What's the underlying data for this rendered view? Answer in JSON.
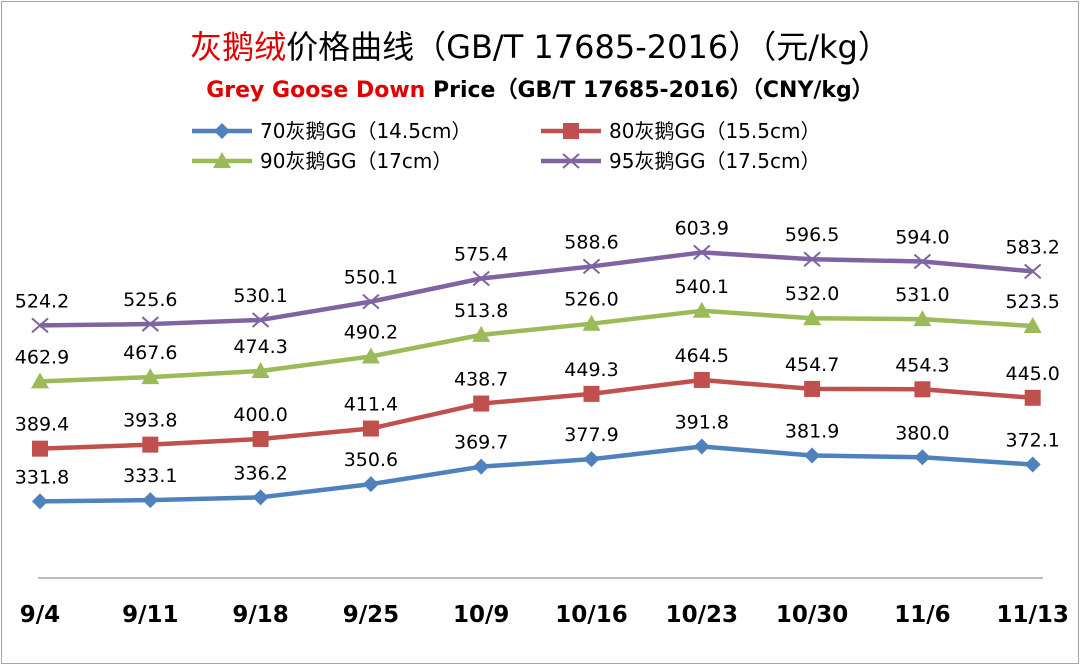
{
  "chart_data": {
    "type": "line",
    "title": {
      "cn_red": "灰鹅绒",
      "cn_rest": "价格曲线（GB/T 17685-2016）（元/kg）",
      "en_red": "Grey Goose Down",
      "en_rest": " Price（GB/T 17685-2016）（CNY/kg）"
    },
    "categories": [
      "9/4",
      "9/11",
      "9/18",
      "9/25",
      "10/9",
      "10/16",
      "10/23",
      "10/30",
      "11/6",
      "11/13"
    ],
    "series": [
      {
        "name": "70灰鹅GG（14.5cm）",
        "color": "#4f81bd",
        "marker": "diamond",
        "values": [
          331.8,
          333.1,
          336.2,
          350.6,
          369.7,
          377.9,
          391.8,
          381.9,
          380.0,
          372.1
        ],
        "labels": [
          "331.8",
          "333.1",
          "336.2",
          "350.6",
          "369.7",
          "377.9",
          "391.8",
          "381.9",
          "380.0",
          "372.1"
        ]
      },
      {
        "name": "80灰鹅GG（15.5cm）",
        "color": "#c0504d",
        "marker": "square",
        "values": [
          389.4,
          393.8,
          400.0,
          411.4,
          438.7,
          449.3,
          464.5,
          454.7,
          454.3,
          445.0
        ],
        "labels": [
          "389.4",
          "393.8",
          "400.0",
          "411.4",
          "438.7",
          "449.3",
          "464.5",
          "454.7",
          "454.3",
          "445.0"
        ]
      },
      {
        "name": "90灰鹅GG（17cm）",
        "color": "#9bbb59",
        "marker": "triangle",
        "values": [
          462.9,
          467.6,
          474.3,
          490.2,
          513.8,
          526.0,
          540.1,
          532.0,
          531.0,
          523.5
        ],
        "labels": [
          "462.9",
          "467.6",
          "474.3",
          "490.2",
          "513.8",
          "526.0",
          "540.1",
          "532.0",
          "531.0",
          "523.5"
        ]
      },
      {
        "name": "95灰鹅GG（17.5cm）",
        "color": "#8064a2",
        "marker": "x",
        "values": [
          524.2,
          525.6,
          530.1,
          550.1,
          575.4,
          588.6,
          603.9,
          596.5,
          594.0,
          583.2
        ],
        "labels": [
          "524.2",
          "525.6",
          "530.1",
          "550.1",
          "575.4",
          "588.6",
          "603.9",
          "596.5",
          "594.0",
          "583.2"
        ]
      }
    ],
    "legend_position": "top",
    "grid": false,
    "ylim": [
      200,
      650
    ],
    "y_axis_visible": false
  }
}
